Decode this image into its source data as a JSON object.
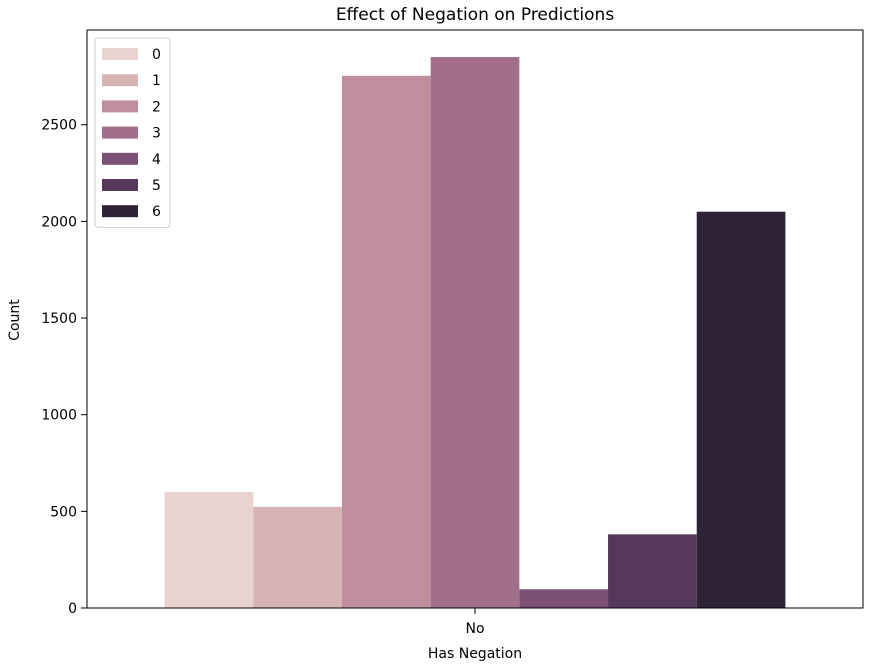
{
  "chart_data": {
    "type": "bar",
    "title": "Effect of Negation on Predictions",
    "xlabel": "Has Negation",
    "ylabel": "Count",
    "categories": [
      "No"
    ],
    "series": [
      {
        "name": "0",
        "color": "#e8d3cf",
        "values": [
          600
        ]
      },
      {
        "name": "1",
        "color": "#d7b3b4",
        "values": [
          523
        ]
      },
      {
        "name": "2",
        "color": "#c08f9e",
        "values": [
          2753
        ]
      },
      {
        "name": "3",
        "color": "#a16f8c",
        "values": [
          2850
        ]
      },
      {
        "name": "4",
        "color": "#7c5175",
        "values": [
          97
        ]
      },
      {
        "name": "5",
        "color": "#56385c",
        "values": [
          381
        ]
      },
      {
        "name": "6",
        "color": "#2e2239",
        "values": [
          2050
        ]
      }
    ],
    "ylim": [
      0,
      2990
    ],
    "yticks": [
      0,
      500,
      1000,
      1500,
      2000,
      2500
    ],
    "grid": false,
    "legend": "top-left"
  }
}
